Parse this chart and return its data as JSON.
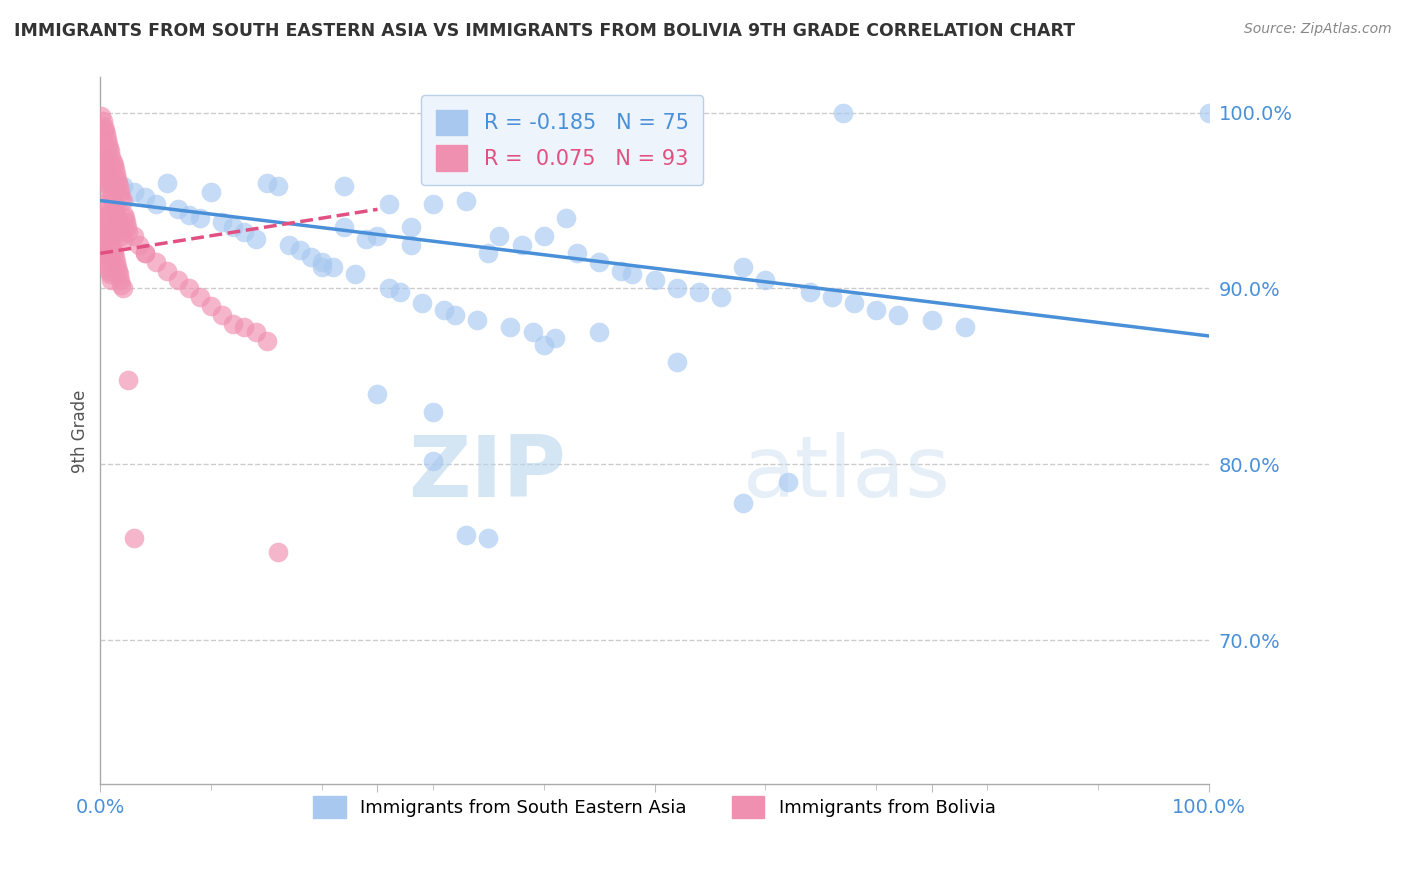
{
  "title": "IMMIGRANTS FROM SOUTH EASTERN ASIA VS IMMIGRANTS FROM BOLIVIA 9TH GRADE CORRELATION CHART",
  "source": "Source: ZipAtlas.com",
  "ylabel": "9th Grade",
  "watermark": "ZIPatlas",
  "series": [
    {
      "name": "Immigrants from South Eastern Asia",
      "color": "#a8c8f0",
      "R": -0.185,
      "N": 75,
      "trend_color": "#4a90d9",
      "trend_dashed": false,
      "x": [
        0.01,
        0.02,
        0.03,
        0.04,
        0.05,
        0.06,
        0.07,
        0.08,
        0.09,
        0.1,
        0.11,
        0.12,
        0.13,
        0.14,
        0.15,
        0.16,
        0.17,
        0.18,
        0.19,
        0.2,
        0.21,
        0.22,
        0.23,
        0.24,
        0.25,
        0.26,
        0.27,
        0.28,
        0.29,
        0.3,
        0.31,
        0.32,
        0.33,
        0.34,
        0.35,
        0.36,
        0.37,
        0.38,
        0.39,
        0.4,
        0.41,
        0.42,
        0.43,
        0.45,
        0.47,
        0.48,
        0.5,
        0.52,
        0.54,
        0.56,
        0.58,
        0.6,
        0.62,
        0.64,
        0.66,
        0.68,
        0.7,
        0.72,
        0.75,
        0.78,
        0.3,
        0.35,
        0.25,
        0.2,
        0.28,
        0.33,
        0.4,
        0.45,
        0.52,
        0.58,
        0.22,
        0.26,
        0.3,
        1.0,
        0.67
      ],
      "y": [
        0.96,
        0.958,
        0.955,
        0.952,
        0.948,
        0.96,
        0.945,
        0.942,
        0.94,
        0.955,
        0.938,
        0.935,
        0.932,
        0.928,
        0.96,
        0.958,
        0.925,
        0.922,
        0.918,
        0.915,
        0.912,
        0.958,
        0.908,
        0.928,
        0.93,
        0.9,
        0.898,
        0.925,
        0.892,
        0.948,
        0.888,
        0.885,
        0.95,
        0.882,
        0.92,
        0.93,
        0.878,
        0.925,
        0.875,
        0.93,
        0.872,
        0.94,
        0.92,
        0.915,
        0.91,
        0.908,
        0.905,
        0.9,
        0.898,
        0.895,
        0.912,
        0.905,
        0.79,
        0.898,
        0.895,
        0.892,
        0.888,
        0.885,
        0.882,
        0.878,
        0.802,
        0.758,
        0.84,
        0.912,
        0.935,
        0.76,
        0.868,
        0.875,
        0.858,
        0.778,
        0.935,
        0.948,
        0.83,
        1.0,
        1.0
      ]
    },
    {
      "name": "Immigrants from Bolivia",
      "color": "#f090b0",
      "R": 0.075,
      "N": 93,
      "trend_color": "#e05080",
      "trend_dashed": true,
      "x": [
        0.001,
        0.002,
        0.003,
        0.004,
        0.005,
        0.006,
        0.007,
        0.008,
        0.009,
        0.01,
        0.011,
        0.012,
        0.013,
        0.014,
        0.015,
        0.016,
        0.017,
        0.018,
        0.019,
        0.02,
        0.001,
        0.002,
        0.003,
        0.004,
        0.005,
        0.006,
        0.007,
        0.008,
        0.009,
        0.01,
        0.011,
        0.012,
        0.013,
        0.014,
        0.015,
        0.016,
        0.017,
        0.018,
        0.019,
        0.02,
        0.001,
        0.002,
        0.003,
        0.004,
        0.005,
        0.006,
        0.007,
        0.008,
        0.009,
        0.01,
        0.011,
        0.012,
        0.013,
        0.014,
        0.015,
        0.016,
        0.017,
        0.018,
        0.019,
        0.02,
        0.001,
        0.002,
        0.003,
        0.004,
        0.005,
        0.006,
        0.007,
        0.008,
        0.009,
        0.01,
        0.021,
        0.022,
        0.023,
        0.024,
        0.025,
        0.03,
        0.035,
        0.04,
        0.05,
        0.06,
        0.07,
        0.08,
        0.09,
        0.1,
        0.11,
        0.12,
        0.13,
        0.14,
        0.15,
        0.16,
        0.025,
        0.03,
        0.04
      ],
      "y": [
        0.998,
        0.995,
        0.992,
        0.99,
        0.988,
        0.985,
        0.982,
        0.98,
        0.978,
        0.975,
        0.972,
        0.97,
        0.968,
        0.965,
        0.962,
        0.96,
        0.958,
        0.955,
        0.952,
        0.95,
        0.975,
        0.972,
        0.97,
        0.968,
        0.965,
        0.962,
        0.96,
        0.958,
        0.955,
        0.952,
        0.95,
        0.948,
        0.945,
        0.942,
        0.94,
        0.938,
        0.935,
        0.932,
        0.93,
        0.928,
        0.948,
        0.945,
        0.942,
        0.94,
        0.938,
        0.935,
        0.932,
        0.93,
        0.928,
        0.925,
        0.922,
        0.92,
        0.918,
        0.915,
        0.912,
        0.91,
        0.908,
        0.905,
        0.902,
        0.9,
        0.928,
        0.925,
        0.922,
        0.92,
        0.918,
        0.915,
        0.912,
        0.91,
        0.908,
        0.905,
        0.942,
        0.94,
        0.938,
        0.935,
        0.932,
        0.93,
        0.925,
        0.92,
        0.915,
        0.91,
        0.905,
        0.9,
        0.895,
        0.89,
        0.885,
        0.88,
        0.878,
        0.875,
        0.87,
        0.75,
        0.848,
        0.758,
        0.92
      ]
    }
  ],
  "xlim": [
    0.0,
    1.0
  ],
  "ylim": [
    0.618,
    1.02
  ],
  "yticks": [
    0.7,
    0.8,
    0.9,
    1.0
  ],
  "ytick_labels": [
    "70.0%",
    "80.0%",
    "90.0%",
    "100.0%"
  ],
  "xtick_labels": [
    "0.0%",
    "100.0%"
  ],
  "grid_color": "#cccccc",
  "axis_color": "#aaaaaa",
  "title_color": "#333333",
  "tick_color": "#4a90d9",
  "legend_box_color": "#eef4fb",
  "legend_border_color": "#b8d0e8",
  "trend_blue_x0": 0.0,
  "trend_blue_y0": 0.95,
  "trend_blue_x1": 1.0,
  "trend_blue_y1": 0.873,
  "trend_pink_x0": 0.0,
  "trend_pink_y0": 0.92,
  "trend_pink_x1": 0.25,
  "trend_pink_y1": 0.945
}
